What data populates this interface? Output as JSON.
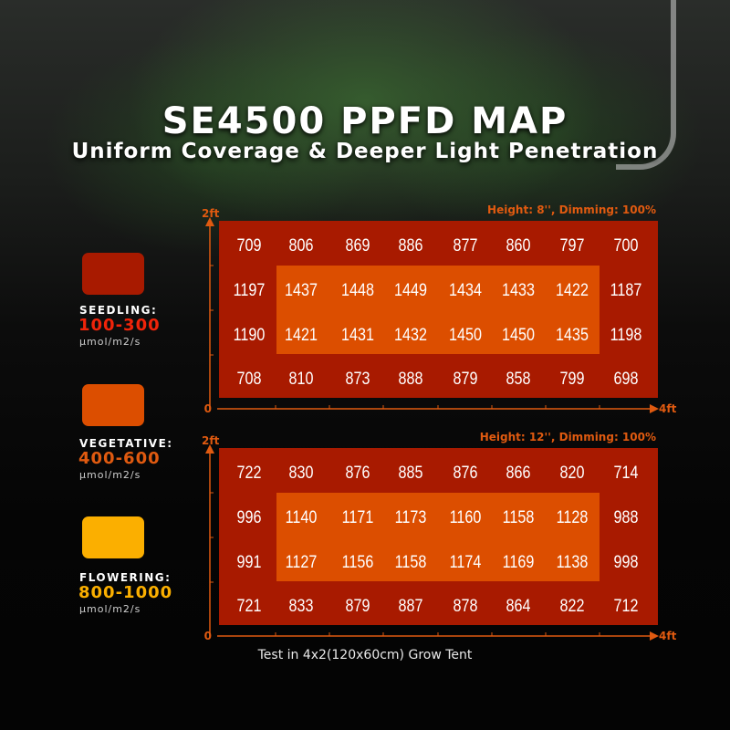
{
  "header": {
    "title": "SE4500 PPFD MAP",
    "subtitle": "Uniform Coverage & Deeper Light Penetration"
  },
  "legend": [
    {
      "name": "SEEDLING:",
      "range": "100-300",
      "unit": "µmol/m2/s",
      "color": "#a81a00",
      "range_color": "#f0240a"
    },
    {
      "name": "VEGETATIVE:",
      "range": "400-600",
      "unit": "µmol/m2/s",
      "color": "#dc4e00",
      "range_color": "#e05a10"
    },
    {
      "name": "FLOWERING:",
      "range": "800-1000",
      "unit": "µmol/m2/s",
      "color": "#fbaf00",
      "range_color": "#fbaf00"
    }
  ],
  "footer_note": "Test in 4x2(120x60cm) Grow Tent",
  "colors": {
    "axis": "#e05a10",
    "outer_cell": "#a81a00",
    "inner_cell": "#dc4e00"
  },
  "chart_data": [
    {
      "type": "heatmap",
      "title": "Height: 8'', Dimming: 100%",
      "x_axis": {
        "min_label": "0",
        "max_label": "4ft"
      },
      "y_axis": {
        "min_label": "0",
        "max_label": "2ft"
      },
      "values": [
        [
          709,
          806,
          869,
          886,
          877,
          860,
          797,
          700
        ],
        [
          1197,
          1437,
          1448,
          1449,
          1434,
          1433,
          1422,
          1187
        ],
        [
          1190,
          1421,
          1431,
          1432,
          1450,
          1450,
          1435,
          1198
        ],
        [
          708,
          810,
          873,
          888,
          879,
          858,
          799,
          698
        ]
      ]
    },
    {
      "type": "heatmap",
      "title": "Height: 12'', Dimming: 100%",
      "x_axis": {
        "min_label": "0",
        "max_label": "4ft"
      },
      "y_axis": {
        "min_label": "0",
        "max_label": "2ft"
      },
      "values": [
        [
          722,
          830,
          876,
          885,
          876,
          866,
          820,
          714
        ],
        [
          996,
          1140,
          1171,
          1173,
          1160,
          1158,
          1128,
          988
        ],
        [
          991,
          1127,
          1156,
          1158,
          1174,
          1169,
          1138,
          998
        ],
        [
          721,
          833,
          879,
          887,
          878,
          864,
          822,
          712
        ]
      ]
    }
  ]
}
